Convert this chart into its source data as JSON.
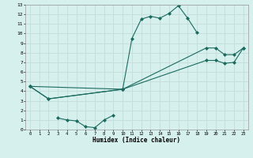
{
  "xlabel": "Humidex (Indice chaleur)",
  "bg_color": "#d6f0ee",
  "grid_color": "#c8dedd",
  "line_color": "#1a6b5e",
  "xlim": [
    -0.5,
    23.5
  ],
  "ylim": [
    0,
    13
  ],
  "xticks": [
    0,
    1,
    2,
    3,
    4,
    5,
    6,
    7,
    8,
    9,
    10,
    11,
    12,
    13,
    14,
    15,
    16,
    17,
    18,
    19,
    20,
    21,
    22,
    23
  ],
  "yticks": [
    0,
    1,
    2,
    3,
    4,
    5,
    6,
    7,
    8,
    9,
    10,
    11,
    12,
    13
  ],
  "curve1_x": [
    0,
    10,
    11,
    12,
    13,
    14,
    15,
    16,
    17,
    18
  ],
  "curve1_y": [
    4.5,
    4.2,
    9.5,
    11.5,
    11.8,
    11.6,
    12.1,
    12.9,
    11.6,
    10.1
  ],
  "curve2_x": [
    0,
    2,
    10,
    19,
    20,
    21,
    22,
    23
  ],
  "curve2_y": [
    4.5,
    3.2,
    4.2,
    8.5,
    8.5,
    7.8,
    7.8,
    8.5
  ],
  "curve3_x": [
    0,
    2,
    10,
    19,
    20,
    21,
    22,
    23
  ],
  "curve3_y": [
    4.5,
    3.2,
    4.2,
    7.2,
    7.2,
    6.9,
    7.0,
    8.5
  ],
  "curve4_x": [
    3,
    4,
    5,
    6,
    7,
    8,
    9
  ],
  "curve4_y": [
    1.2,
    1.0,
    0.9,
    0.3,
    0.2,
    1.0,
    1.5
  ]
}
